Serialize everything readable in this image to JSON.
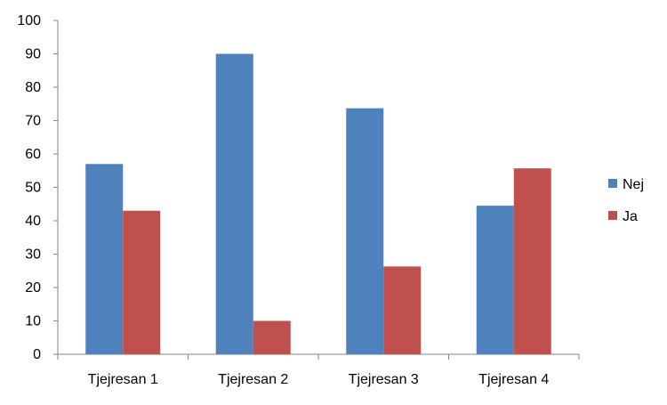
{
  "chart_data": {
    "type": "bar",
    "title": "",
    "xlabel": "",
    "ylabel": "",
    "ylim": [
      0,
      100
    ],
    "yticks": [
      0,
      10,
      20,
      30,
      40,
      50,
      60,
      70,
      80,
      90,
      100
    ],
    "grid": false,
    "legend_position": "right",
    "categories": [
      "Tjejresan 1",
      "Tjejresan 2",
      "Tjejresan 3",
      "Tjejresan 4"
    ],
    "series": [
      {
        "name": "Nej",
        "color": "#4F81BD",
        "values": [
          57,
          90,
          73.7,
          44.5
        ]
      },
      {
        "name": "Ja",
        "color": "#C0504D",
        "values": [
          43,
          10,
          26.3,
          55.7
        ]
      }
    ]
  }
}
